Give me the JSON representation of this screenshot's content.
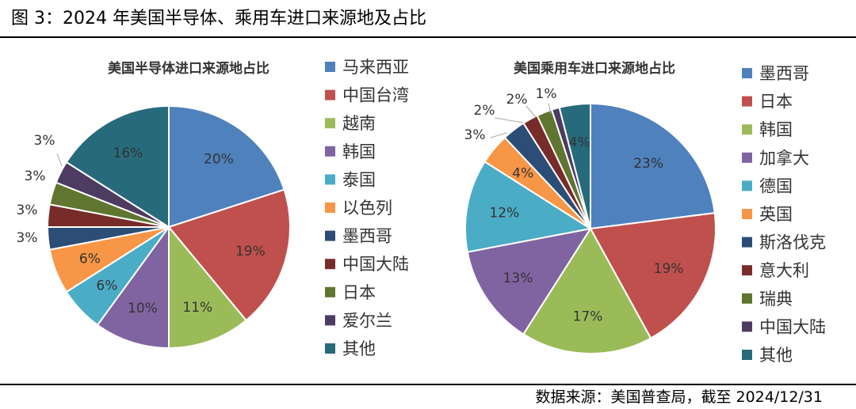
{
  "figure_title": "图 3：2024 年美国半导体、乘用车进口来源地及占比",
  "source": "数据来源：美国普查局，截至 2024/12/31",
  "chart_data": [
    {
      "type": "pie",
      "title": "美国半导体进口来源地占比",
      "categories": [
        "马来西亚",
        "中国台湾",
        "越南",
        "韩国",
        "泰国",
        "以色列",
        "墨西哥",
        "中国大陆",
        "日本",
        "爱尔兰",
        "其他"
      ],
      "values": [
        20,
        19,
        11,
        10,
        6,
        6,
        3,
        3,
        3,
        3,
        16
      ],
      "labels": [
        "20%",
        "19%",
        "11%",
        "10%",
        "6%",
        "6%",
        "3%",
        "3%",
        "3%",
        "3%",
        "16%"
      ],
      "colors": [
        "#4f81bd",
        "#c0504d",
        "#9bbb59",
        "#8064a2",
        "#4bacc6",
        "#f79646",
        "#2c4d75",
        "#772c2a",
        "#5f7530",
        "#4d3b62",
        "#276a7c"
      ],
      "legend_position": "right"
    },
    {
      "type": "pie",
      "title": "美国乘用车进口来源地占比",
      "categories": [
        "墨西哥",
        "日本",
        "韩国",
        "加拿大",
        "德国",
        "英国",
        "斯洛伐克",
        "意大利",
        "瑞典",
        "中国大陆",
        "其他"
      ],
      "values": [
        23,
        19,
        17,
        13,
        12,
        4,
        3,
        2,
        2,
        1,
        4
      ],
      "labels": [
        "23%",
        "19%",
        "17%",
        "13%",
        "12%",
        "4%",
        "3%",
        "2%",
        "2%",
        "1%",
        "4%"
      ],
      "colors": [
        "#4f81bd",
        "#c0504d",
        "#9bbb59",
        "#8064a2",
        "#4bacc6",
        "#f79646",
        "#2c4d75",
        "#772c2a",
        "#5f7530",
        "#4d3b62",
        "#276a7c"
      ],
      "legend_position": "right"
    }
  ]
}
